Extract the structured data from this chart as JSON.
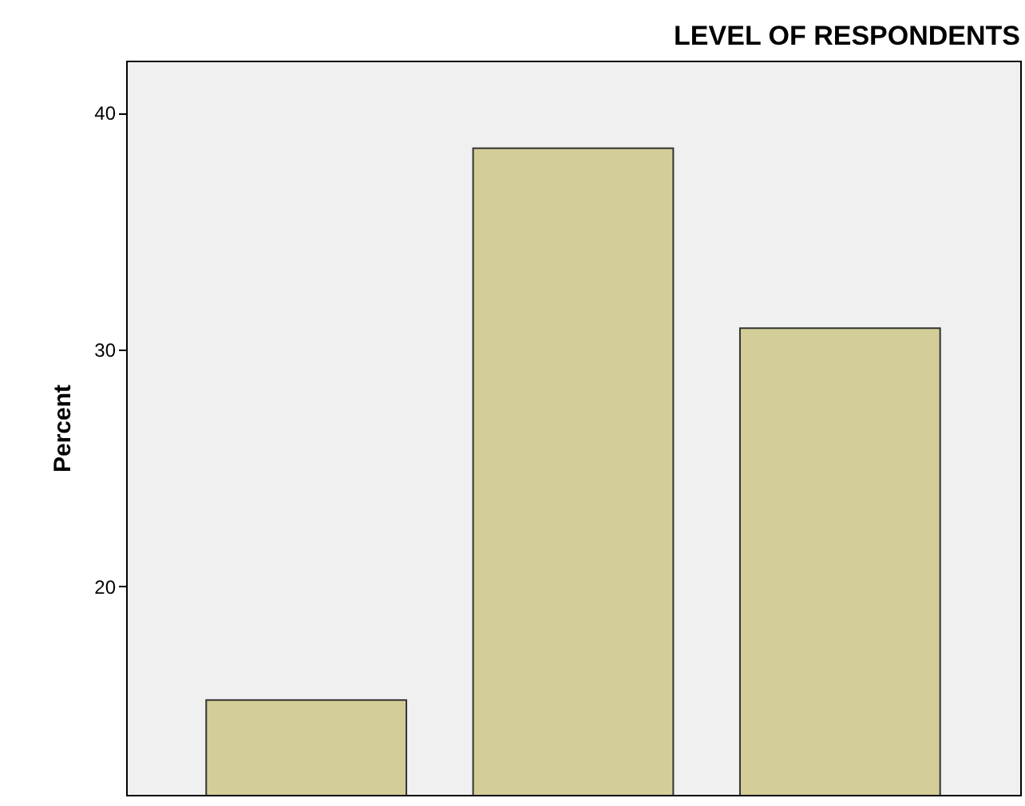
{
  "chart_data": {
    "type": "bar",
    "title": "LEVEL OF RESPONDENTS",
    "ylabel": "Percent",
    "categories": [
      null,
      null,
      null
    ],
    "values": [
      15.2,
      38.5,
      30.9
    ],
    "color": "#d3ce97",
    "ylim": [
      11.2,
      42.2
    ],
    "yticks": [
      20,
      30,
      40
    ],
    "grid": false
  }
}
